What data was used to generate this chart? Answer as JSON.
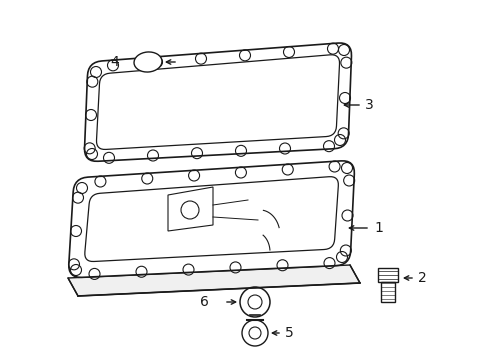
{
  "background_color": "#ffffff",
  "line_color": "#1a1a1a",
  "line_width": 1.0,
  "figsize": [
    4.89,
    3.6
  ],
  "dpi": 100
}
